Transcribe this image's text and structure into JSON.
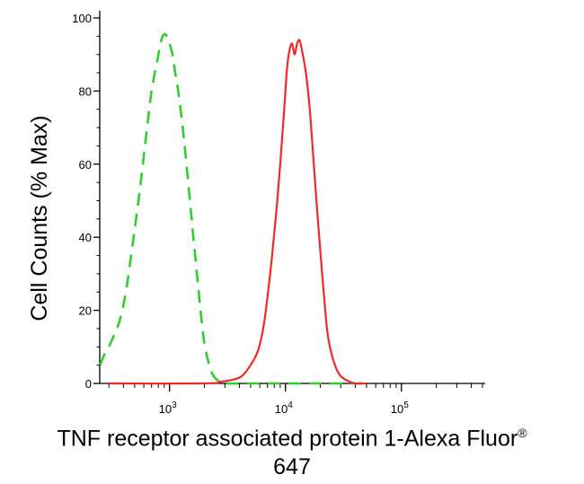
{
  "chart_data": {
    "type": "line",
    "title": "",
    "xlabel": "TNF receptor associated protein 1-Alexa Fluor",
    "xlabel_mark": "®",
    "xlabel_line2": "647",
    "ylabel": "Cell Counts (% Max)",
    "xscale": "log",
    "xlim": [
      250,
      500000
    ],
    "ylim": [
      0,
      100
    ],
    "yticks": [
      0,
      20,
      40,
      60,
      80,
      100
    ],
    "xticks": [
      {
        "value": 1000,
        "base": "10",
        "exp": "3"
      },
      {
        "value": 10000,
        "base": "10",
        "exp": "4"
      },
      {
        "value": 100000,
        "base": "10",
        "exp": "5"
      }
    ],
    "grid": false,
    "series": [
      {
        "style": "dashed",
        "color": "#33cc33",
        "x": [
          252,
          275,
          300,
          330,
          370,
          420,
          480,
          550,
          630,
          700,
          780,
          850,
          900,
          950,
          1000,
          1060,
          1120,
          1200,
          1300,
          1420,
          1550,
          1700,
          1850,
          2000,
          2200,
          2400,
          2700,
          3000,
          5000,
          10000,
          20000,
          50000
        ],
        "y": [
          5,
          8,
          10,
          13,
          17,
          25,
          38,
          52,
          68,
          80,
          88,
          94,
          95.5,
          95,
          93,
          90,
          85,
          79,
          70,
          58,
          45,
          32,
          20,
          11,
          5,
          2,
          0.5,
          0,
          0,
          0,
          0,
          0
        ]
      },
      {
        "style": "solid",
        "color": "#ee2a2a",
        "x": [
          300,
          2000,
          2800,
          3500,
          4200,
          5000,
          5800,
          6500,
          7200,
          8000,
          8600,
          9200,
          9800,
          10300,
          10800,
          11400,
          12000,
          12600,
          13200,
          13700,
          14300,
          15000,
          16000,
          17200,
          18500,
          20000,
          21500,
          23000,
          25000,
          27500,
          30000,
          34000,
          40000,
          50000
        ],
        "y": [
          0,
          0,
          0.5,
          1,
          2,
          5,
          9,
          16,
          27,
          41,
          52,
          64,
          76,
          86,
          91,
          93,
          90,
          93,
          94,
          92,
          89,
          85,
          77,
          64,
          50,
          36,
          24,
          14,
          8,
          4,
          2,
          0.8,
          0,
          0
        ]
      }
    ]
  }
}
